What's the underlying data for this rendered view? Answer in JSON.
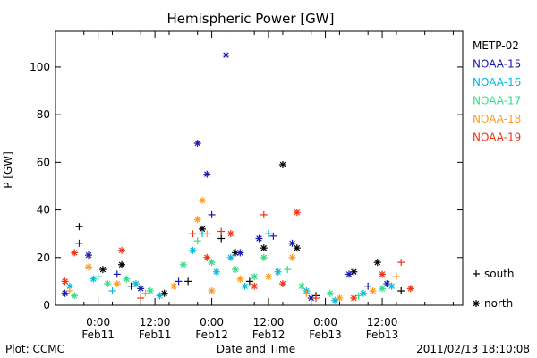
{
  "chart_data": {
    "type": "scatter",
    "title": "Hemispheric Power [GW]",
    "xlabel": "Date and Time",
    "ylabel": "P [GW]",
    "ylim": [
      0,
      115
    ],
    "xlim": [
      "2011-02-10 15:00",
      "2011-02-14 05:00"
    ],
    "yticks": [
      0,
      20,
      40,
      60,
      80,
      100
    ],
    "xticks": [
      {
        "t": "2011-02-11 00:00",
        "time": "0:00",
        "date": "Feb11"
      },
      {
        "t": "2011-02-11 12:00",
        "time": "12:00",
        "date": "Feb11"
      },
      {
        "t": "2011-02-12 00:00",
        "time": "0:00",
        "date": "Feb12"
      },
      {
        "t": "2011-02-12 12:00",
        "time": "12:00",
        "date": "Feb12"
      },
      {
        "t": "2011-02-13 00:00",
        "time": "0:00",
        "date": "Feb13"
      },
      {
        "t": "2011-02-13 12:00",
        "time": "12:00",
        "date": "Feb13"
      }
    ],
    "grid": false,
    "legend_position": "right",
    "series": [
      {
        "name": "METP-02",
        "color": "#000000",
        "points": [
          [
            "2011-02-10 20:00",
            33,
            "south"
          ],
          [
            "2011-02-11 01:00",
            15,
            "north"
          ],
          [
            "2011-02-11 05:00",
            17,
            "north"
          ],
          [
            "2011-02-11 07:00",
            8,
            "south"
          ],
          [
            "2011-02-11 14:00",
            5,
            "north"
          ],
          [
            "2011-02-11 19:00",
            10,
            "south"
          ],
          [
            "2011-02-11 22:00",
            32,
            "north"
          ],
          [
            "2011-02-12 02:00",
            28,
            "south"
          ],
          [
            "2011-02-12 05:00",
            22,
            "north"
          ],
          [
            "2011-02-12 08:00",
            10,
            "south"
          ],
          [
            "2011-02-12 11:00",
            24,
            "north"
          ],
          [
            "2011-02-12 15:00",
            59,
            "north"
          ],
          [
            "2011-02-12 18:00",
            24,
            "north"
          ],
          [
            "2011-02-12 22:00",
            4,
            "south"
          ],
          [
            "2011-02-13 06:00",
            14,
            "north"
          ],
          [
            "2011-02-13 11:00",
            18,
            "north"
          ],
          [
            "2011-02-13 16:00",
            6,
            "south"
          ]
        ]
      },
      {
        "name": "NOAA-15",
        "color": "#1a1aaa",
        "points": [
          [
            "2011-02-10 17:00",
            5,
            "north"
          ],
          [
            "2011-02-10 20:00",
            26,
            "south"
          ],
          [
            "2011-02-10 22:00",
            21,
            "north"
          ],
          [
            "2011-02-11 04:00",
            13,
            "south"
          ],
          [
            "2011-02-11 09:00",
            7,
            "north"
          ],
          [
            "2011-02-11 17:00",
            10,
            "south"
          ],
          [
            "2011-02-11 21:00",
            68,
            "north"
          ],
          [
            "2011-02-11 23:00",
            55,
            "north"
          ],
          [
            "2011-02-12 00:00",
            38,
            "south"
          ],
          [
            "2011-02-12 03:00",
            105,
            "north"
          ],
          [
            "2011-02-12 06:00",
            22,
            "north"
          ],
          [
            "2011-02-12 10:00",
            28,
            "north"
          ],
          [
            "2011-02-12 13:00",
            29,
            "south"
          ],
          [
            "2011-02-12 17:00",
            26,
            "north"
          ],
          [
            "2011-02-12 21:00",
            3,
            "north"
          ],
          [
            "2011-02-13 05:00",
            13,
            "north"
          ],
          [
            "2011-02-13 09:00",
            8,
            "south"
          ],
          [
            "2011-02-13 13:00",
            9,
            "north"
          ]
        ]
      },
      {
        "name": "NOAA-16",
        "color": "#00bbdd",
        "points": [
          [
            "2011-02-10 18:00",
            8,
            "north"
          ],
          [
            "2011-02-10 23:00",
            11,
            "north"
          ],
          [
            "2011-02-11 03:00",
            6,
            "south"
          ],
          [
            "2011-02-11 08:00",
            9,
            "north"
          ],
          [
            "2011-02-11 13:00",
            4,
            "north"
          ],
          [
            "2011-02-11 20:00",
            23,
            "north"
          ],
          [
            "2011-02-11 22:00",
            30,
            "south"
          ],
          [
            "2011-02-12 01:00",
            14,
            "north"
          ],
          [
            "2011-02-12 04:00",
            20,
            "north"
          ],
          [
            "2011-02-12 07:00",
            8,
            "north"
          ],
          [
            "2011-02-12 12:00",
            30,
            "south"
          ],
          [
            "2011-02-12 14:00",
            14,
            "north"
          ],
          [
            "2011-02-12 20:00",
            6,
            "north"
          ],
          [
            "2011-02-13 02:00",
            2,
            "north"
          ],
          [
            "2011-02-13 08:00",
            5,
            "north"
          ],
          [
            "2011-02-13 14:00",
            8,
            "north"
          ]
        ]
      },
      {
        "name": "NOAA-17",
        "color": "#33dd88",
        "points": [
          [
            "2011-02-10 19:00",
            4,
            "north"
          ],
          [
            "2011-02-11 00:00",
            12,
            "south"
          ],
          [
            "2011-02-11 02:00",
            9,
            "north"
          ],
          [
            "2011-02-11 06:00",
            11,
            "north"
          ],
          [
            "2011-02-11 11:00",
            6,
            "north"
          ],
          [
            "2011-02-11 18:00",
            17,
            "north"
          ],
          [
            "2011-02-11 21:00",
            27,
            "south"
          ],
          [
            "2011-02-12 00:00",
            18,
            "north"
          ],
          [
            "2011-02-12 05:00",
            15,
            "north"
          ],
          [
            "2011-02-12 09:00",
            12,
            "north"
          ],
          [
            "2011-02-12 11:00",
            20,
            "north"
          ],
          [
            "2011-02-12 16:00",
            15,
            "south"
          ],
          [
            "2011-02-12 19:00",
            8,
            "north"
          ],
          [
            "2011-02-13 01:00",
            5,
            "north"
          ],
          [
            "2011-02-13 07:00",
            4,
            "south"
          ],
          [
            "2011-02-13 12:00",
            7,
            "north"
          ]
        ]
      },
      {
        "name": "NOAA-18",
        "color": "#ff9922",
        "points": [
          [
            "2011-02-10 18:00",
            6,
            "south"
          ],
          [
            "2011-02-10 22:00",
            16,
            "north"
          ],
          [
            "2011-02-11 04:00",
            9,
            "north"
          ],
          [
            "2011-02-11 10:00",
            5,
            "south"
          ],
          [
            "2011-02-11 16:00",
            8,
            "north"
          ],
          [
            "2011-02-11 21:00",
            36,
            "north"
          ],
          [
            "2011-02-11 22:00",
            44,
            "north"
          ],
          [
            "2011-02-11 23:00",
            30,
            "south"
          ],
          [
            "2011-02-12 00:00",
            6,
            "north"
          ],
          [
            "2011-02-12 06:00",
            11,
            "north"
          ],
          [
            "2011-02-12 12:00",
            12,
            "north"
          ],
          [
            "2011-02-12 17:00",
            20,
            "north"
          ],
          [
            "2011-02-12 20:00",
            5,
            "south"
          ],
          [
            "2011-02-13 03:00",
            3,
            "north"
          ],
          [
            "2011-02-13 10:00",
            6,
            "north"
          ],
          [
            "2011-02-13 15:00",
            12,
            "south"
          ]
        ]
      },
      {
        "name": "NOAA-19",
        "color": "#ee3311",
        "points": [
          [
            "2011-02-10 17:00",
            10,
            "north"
          ],
          [
            "2011-02-10 19:00",
            22,
            "north"
          ],
          [
            "2011-02-11 05:00",
            23,
            "north"
          ],
          [
            "2011-02-11 09:00",
            3,
            "south"
          ],
          [
            "2011-02-11 20:00",
            30,
            "south"
          ],
          [
            "2011-02-11 23:00",
            20,
            "north"
          ],
          [
            "2011-02-12 02:00",
            31,
            "south"
          ],
          [
            "2011-02-12 04:00",
            30,
            "north"
          ],
          [
            "2011-02-12 09:00",
            8,
            "north"
          ],
          [
            "2011-02-12 11:00",
            38,
            "south"
          ],
          [
            "2011-02-12 15:00",
            9,
            "north"
          ],
          [
            "2011-02-12 18:00",
            39,
            "north"
          ],
          [
            "2011-02-12 22:00",
            3,
            "south"
          ],
          [
            "2011-02-13 06:00",
            3,
            "north"
          ],
          [
            "2011-02-13 12:00",
            13,
            "north"
          ],
          [
            "2011-02-13 16:00",
            18,
            "south"
          ],
          [
            "2011-02-13 18:00",
            7,
            "north"
          ]
        ]
      }
    ],
    "markers": [
      {
        "key": "south",
        "label": "south",
        "glyph": "+"
      },
      {
        "key": "north",
        "label": "north",
        "glyph": "*"
      }
    ]
  },
  "footer": {
    "plot_credit": "Plot: CCMC",
    "timestamp": "2011/02/13 18:10:08"
  }
}
